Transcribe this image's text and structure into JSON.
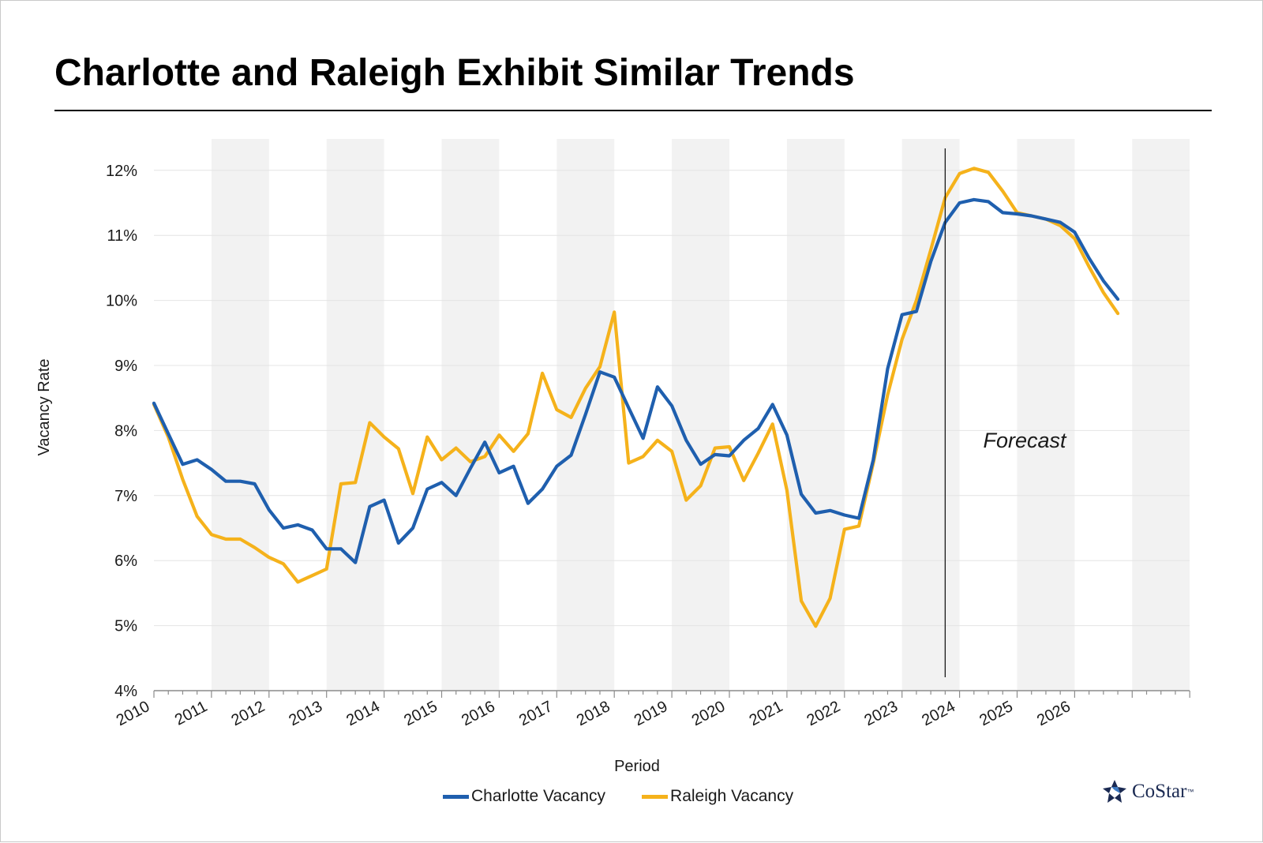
{
  "title": "Charlotte and Raleigh Exhibit Similar Trends",
  "colors": {
    "charlotte": "#1f5fae",
    "raleigh": "#f5b21b",
    "band": "#f2f2f2",
    "grid": "#e4e4e4",
    "axis": "#8c8c8c"
  },
  "legend": {
    "charlotte_label": "Charlotte Vacancy",
    "raleigh_label": "Raleigh Vacancy"
  },
  "brand": {
    "name": "CoStar",
    "tm": "™",
    "icon": "costar-star-logo-icon"
  },
  "chart_data": {
    "type": "line",
    "xlabel": "Period",
    "ylabel": "Vacancy Rate",
    "ylim": [
      4,
      12
    ],
    "xlim": [
      2010,
      2028
    ],
    "yticks": [
      4,
      5,
      6,
      7,
      8,
      9,
      10,
      11,
      12
    ],
    "ytick_labels": [
      "4%",
      "5%",
      "6%",
      "7%",
      "8%",
      "9%",
      "10%",
      "11%",
      "12%"
    ],
    "xticks": [
      2010,
      2011,
      2012,
      2013,
      2014,
      2015,
      2016,
      2017,
      2018,
      2019,
      2020,
      2021,
      2022,
      2023,
      2024,
      2025,
      2026
    ],
    "xtick_labels": [
      "2010",
      "2011",
      "2012",
      "2013",
      "2014",
      "2015",
      "2016",
      "2017",
      "2018",
      "2019",
      "2020",
      "2021",
      "2022",
      "2023",
      "2024",
      "2025",
      "2026"
    ],
    "shaded_years": [
      2011,
      2013,
      2015,
      2017,
      2019,
      2021,
      2023,
      2025,
      2027
    ],
    "forecast_start": 2023.75,
    "forecast_label": "Forecast",
    "grid": true,
    "legend_position": "bottom",
    "series": [
      {
        "name": "Charlotte Vacancy",
        "color": "#1f5fae",
        "x": [
          2010.0,
          2010.25,
          2010.5,
          2010.75,
          2011.0,
          2011.25,
          2011.5,
          2011.75,
          2012.0,
          2012.25,
          2012.5,
          2012.75,
          2013.0,
          2013.25,
          2013.5,
          2013.75,
          2014.0,
          2014.25,
          2014.5,
          2014.75,
          2015.0,
          2015.25,
          2015.5,
          2015.75,
          2016.0,
          2016.25,
          2016.5,
          2016.75,
          2017.0,
          2017.25,
          2017.5,
          2017.75,
          2018.0,
          2018.25,
          2018.5,
          2018.75,
          2019.0,
          2019.25,
          2019.5,
          2019.75,
          2020.0,
          2020.25,
          2020.5,
          2020.75,
          2021.0,
          2021.25,
          2021.5,
          2021.75,
          2022.0,
          2022.25,
          2022.5,
          2022.75,
          2023.0,
          2023.25,
          2023.5,
          2023.75,
          2024.0,
          2024.25,
          2024.5,
          2024.75,
          2025.0,
          2025.25,
          2025.5,
          2025.75,
          2026.0,
          2026.25,
          2026.5,
          2026.75
        ],
        "y": [
          8.42,
          7.95,
          7.48,
          7.55,
          7.4,
          7.22,
          7.22,
          7.18,
          6.78,
          6.5,
          6.55,
          6.47,
          6.18,
          6.18,
          5.97,
          6.83,
          6.93,
          6.27,
          6.5,
          7.1,
          7.2,
          7.0,
          7.42,
          7.82,
          7.35,
          7.45,
          6.88,
          7.1,
          7.45,
          7.62,
          8.25,
          8.9,
          8.82,
          8.35,
          7.88,
          8.67,
          8.38,
          7.85,
          7.48,
          7.63,
          7.61,
          7.85,
          8.03,
          8.4,
          7.93,
          7.02,
          6.73,
          6.77,
          6.7,
          6.65,
          7.55,
          8.95,
          9.78,
          9.83,
          10.6,
          11.2,
          11.5,
          11.55,
          11.52,
          11.35,
          11.33,
          11.3,
          11.25,
          11.2,
          11.05,
          10.65,
          10.3,
          10.02
        ]
      },
      {
        "name": "Raleigh Vacancy",
        "color": "#f5b21b",
        "x": [
          2010.0,
          2010.25,
          2010.5,
          2010.75,
          2011.0,
          2011.25,
          2011.5,
          2011.75,
          2012.0,
          2012.25,
          2012.5,
          2012.75,
          2013.0,
          2013.25,
          2013.5,
          2013.75,
          2014.0,
          2014.25,
          2014.5,
          2014.75,
          2015.0,
          2015.25,
          2015.5,
          2015.75,
          2016.0,
          2016.25,
          2016.5,
          2016.75,
          2017.0,
          2017.25,
          2017.5,
          2017.75,
          2018.0,
          2018.25,
          2018.5,
          2018.75,
          2019.0,
          2019.25,
          2019.5,
          2019.75,
          2020.0,
          2020.25,
          2020.5,
          2020.75,
          2021.0,
          2021.25,
          2021.5,
          2021.75,
          2022.0,
          2022.25,
          2022.5,
          2022.75,
          2023.0,
          2023.25,
          2023.5,
          2023.75,
          2024.0,
          2024.25,
          2024.5,
          2024.75,
          2025.0,
          2025.25,
          2025.5,
          2025.75,
          2026.0,
          2026.25,
          2026.5,
          2026.75
        ],
        "y": [
          8.4,
          7.9,
          7.25,
          6.68,
          6.4,
          6.33,
          6.33,
          6.2,
          6.05,
          5.95,
          5.67,
          5.77,
          5.87,
          7.18,
          7.2,
          8.12,
          7.9,
          7.72,
          7.03,
          7.9,
          7.55,
          7.73,
          7.52,
          7.6,
          7.93,
          7.68,
          7.95,
          8.88,
          8.32,
          8.2,
          8.65,
          8.98,
          9.82,
          7.5,
          7.6,
          7.85,
          7.68,
          6.93,
          7.15,
          7.73,
          7.75,
          7.23,
          7.65,
          8.1,
          7.08,
          5.38,
          4.99,
          5.42,
          6.48,
          6.53,
          7.5,
          8.55,
          9.4,
          10.0,
          10.78,
          11.58,
          11.95,
          12.03,
          11.97,
          11.68,
          11.35,
          11.3,
          11.25,
          11.15,
          10.95,
          10.52,
          10.12,
          9.8
        ]
      }
    ]
  }
}
